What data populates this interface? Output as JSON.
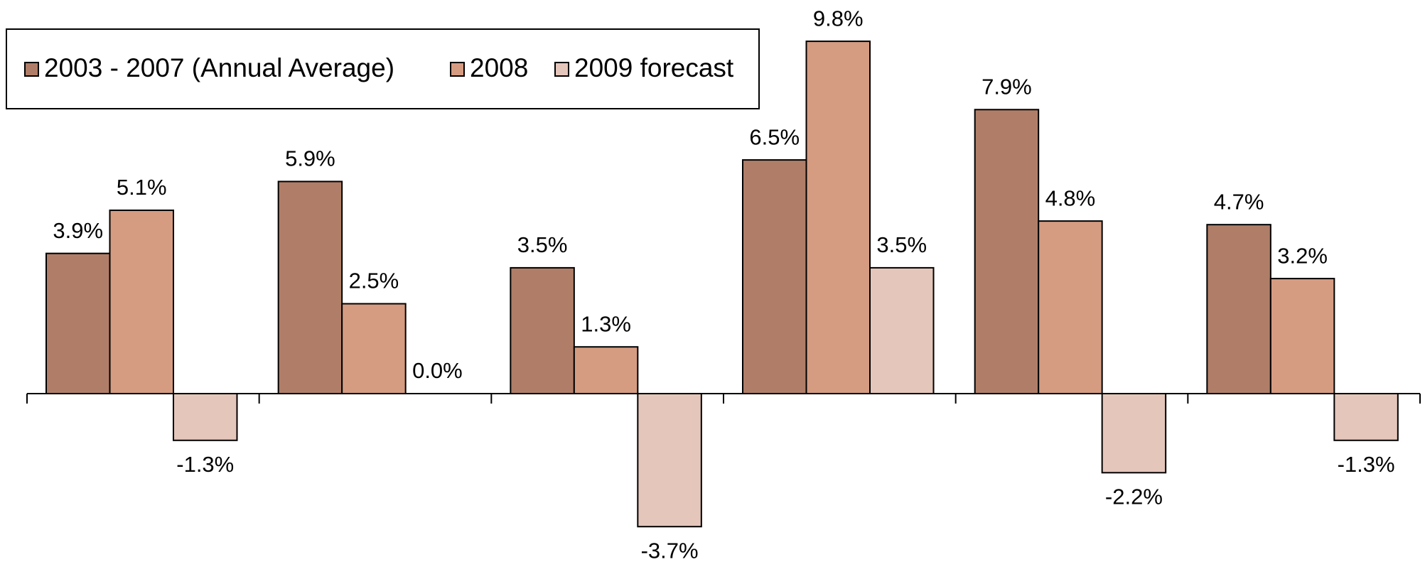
{
  "chart_data": {
    "type": "bar",
    "categories": [
      null,
      null,
      null,
      null,
      null,
      null
    ],
    "series": [
      {
        "name": "2003 - 2007 (Annual Average)",
        "color": "#b07e68",
        "values": [
          3.9,
          5.9,
          3.5,
          6.5,
          7.9,
          4.7
        ],
        "value_labels": [
          "3.9%",
          "5.9%",
          "3.5%",
          "6.5%",
          "7.9%",
          "4.7%"
        ]
      },
      {
        "name": "2008",
        "color": "#d59c82",
        "values": [
          5.1,
          2.5,
          1.3,
          9.8,
          4.8,
          3.2
        ],
        "value_labels": [
          "5.1%",
          "2.5%",
          "1.3%",
          "9.8%",
          "4.8%",
          "3.2%"
        ]
      },
      {
        "name": "2009 forecast",
        "color": "#e5c6bb",
        "values": [
          -1.3,
          0.0,
          -3.7,
          3.5,
          -2.2,
          -1.3
        ],
        "value_labels": [
          "-1.3%",
          "0.0%",
          "-3.7%",
          "3.5%",
          "-2.2%",
          "-1.3%"
        ]
      }
    ],
    "legend": "top-left"
  }
}
